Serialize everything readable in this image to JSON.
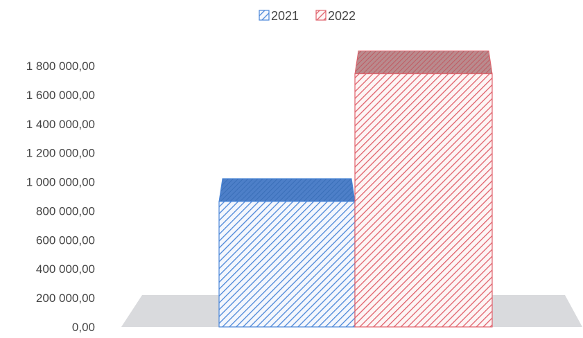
{
  "chart_data": {
    "type": "bar",
    "categories": [
      ""
    ],
    "series": [
      {
        "name": "2021",
        "values": [
          865000
        ]
      },
      {
        "name": "2022",
        "values": [
          1745000
        ]
      }
    ],
    "ylim": [
      0,
      1800000
    ],
    "yticks": [
      "0,00",
      "200 000,00",
      "400 000,00",
      "600 000,00",
      "800 000,00",
      "1 000 000,00",
      "1 200 000,00",
      "1 400 000,00",
      "1 600 000,00",
      "1 800 000,00"
    ],
    "legend_position": "top",
    "grid": false,
    "colors": {
      "2021": "#4a86d8",
      "2022": "#e0606a"
    },
    "style": "3d-hatched"
  }
}
